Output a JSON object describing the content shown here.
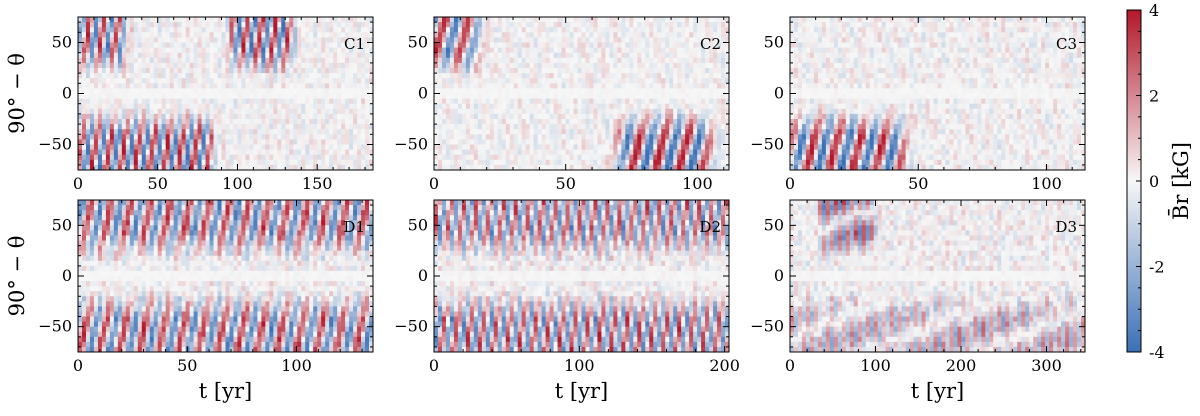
{
  "chart_data": {
    "type": "heatmap",
    "colorbar": {
      "label": "B̄r [kG]",
      "range": [
        -4,
        4
      ],
      "ticks": [
        "-4",
        "-2",
        "0",
        "2",
        "4"
      ],
      "colormap": [
        "#3b6fb6",
        "#f7f7f7",
        "#b2182b"
      ]
    },
    "y_label": "90° − θ",
    "x_label": "t [yr]",
    "ylim": [
      -75,
      75
    ],
    "y_ticks": [
      "50",
      "0",
      "−50"
    ],
    "panels": [
      {
        "id": "C1",
        "xlim": [
          0,
          185
        ],
        "x_ticks": [
          0,
          50,
          100,
          150
        ],
        "x_tick_labels": [
          "0",
          "50",
          "100",
          "150"
        ],
        "events": [
          {
            "t0": 5,
            "t1": 25,
            "hemisphere": "north",
            "amplitude": 3.5
          },
          {
            "t0": 100,
            "t1": 130,
            "hemisphere": "north",
            "amplitude": 3.8
          },
          {
            "t0": 5,
            "t1": 80,
            "hemisphere": "south",
            "amplitude": 3.8
          }
        ],
        "noise": 0.45
      },
      {
        "id": "C2",
        "xlim": [
          0,
          112
        ],
        "x_ticks": [
          0,
          50,
          100
        ],
        "x_tick_labels": [
          "0",
          "50",
          "100"
        ],
        "events": [
          {
            "t0": 0,
            "t1": 12,
            "hemisphere": "north",
            "amplitude": 3.5
          },
          {
            "t0": 75,
            "t1": 100,
            "hemisphere": "south",
            "amplitude": 4.0
          }
        ],
        "noise": 0.45
      },
      {
        "id": "C3",
        "xlim": [
          0,
          115
        ],
        "x_ticks": [
          0,
          50,
          100
        ],
        "x_tick_labels": [
          "0",
          "50",
          "100"
        ],
        "events": [
          {
            "t0": 5,
            "t1": 40,
            "hemisphere": "south",
            "amplitude": 3.8
          }
        ],
        "noise": 0.5
      },
      {
        "id": "D1",
        "xlim": [
          0,
          135
        ],
        "x_ticks": [
          0,
          50,
          100
        ],
        "x_tick_labels": [
          "0",
          "50",
          "100"
        ],
        "events": [
          {
            "t0": 0,
            "t1": 135,
            "hemisphere": "north",
            "amplitude": 3.2
          },
          {
            "t0": 0,
            "t1": 135,
            "hemisphere": "south",
            "amplitude": 3.2
          }
        ],
        "noise": 0.6
      },
      {
        "id": "D2",
        "xlim": [
          0,
          203
        ],
        "x_ticks": [
          0,
          100,
          200
        ],
        "x_tick_labels": [
          "0",
          "100",
          "200"
        ],
        "events": [
          {
            "t0": 0,
            "t1": 200,
            "hemisphere": "north",
            "amplitude": 3.0
          },
          {
            "t0": 0,
            "t1": 200,
            "hemisphere": "south",
            "amplitude": 3.2
          }
        ],
        "noise": 0.6
      },
      {
        "id": "D3",
        "xlim": [
          0,
          345
        ],
        "x_ticks": [
          0,
          100,
          200,
          300
        ],
        "x_tick_labels": [
          "0",
          "100",
          "200",
          "300"
        ],
        "events": [
          {
            "t0": 40,
            "t1": 95,
            "hemisphere": "north",
            "amplitude": 3.0
          },
          {
            "t0": 0,
            "t1": 345,
            "hemisphere": "south",
            "amplitude": 1.8
          }
        ],
        "noise": 0.6
      }
    ]
  }
}
